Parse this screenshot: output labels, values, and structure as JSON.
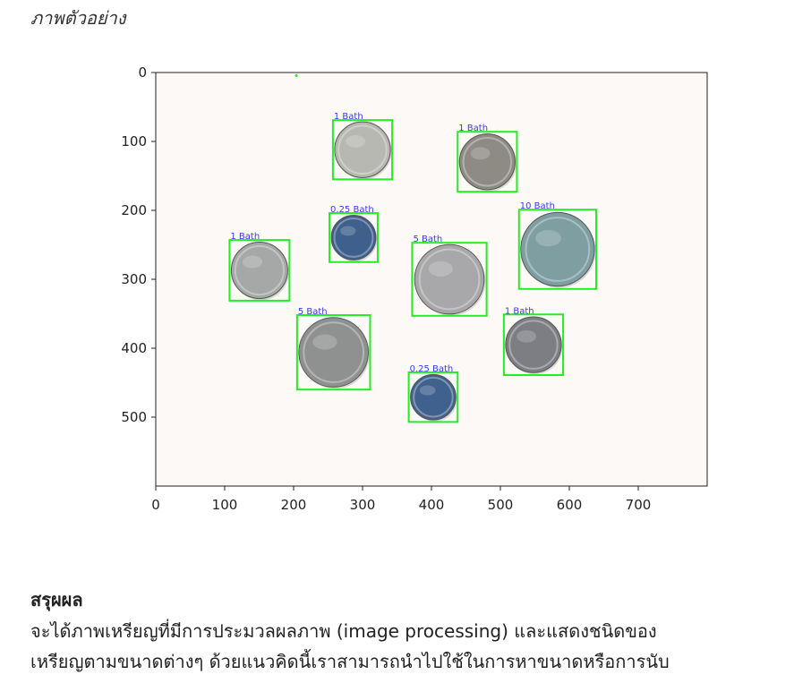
{
  "caption": "ภาพตัวอย่าง",
  "chart_data": {
    "type": "image",
    "xlim": [
      0,
      800
    ],
    "ylim": [
      600,
      0
    ],
    "x_ticks": [
      0,
      100,
      200,
      300,
      400,
      500,
      600,
      700
    ],
    "y_ticks": [
      0,
      100,
      200,
      300,
      400,
      500
    ],
    "coins": [
      {
        "label": "1 Bath",
        "x": 257,
        "y": 69,
        "w": 86,
        "h": 86,
        "color": "#b8b8b2"
      },
      {
        "label": "1 Bath",
        "x": 438,
        "y": 86,
        "w": 86,
        "h": 87,
        "color": "#8e8a84"
      },
      {
        "label": "0.25 Bath",
        "x": 252,
        "y": 204,
        "w": 70,
        "h": 71,
        "color": "#3f5f8c"
      },
      {
        "label": "10 Bath",
        "x": 527,
        "y": 199,
        "w": 112,
        "h": 115,
        "color": "#7e9ea2"
      },
      {
        "label": "1 Bath",
        "x": 107,
        "y": 243,
        "w": 87,
        "h": 88,
        "color": "#a6a8a8"
      },
      {
        "label": "5 Bath",
        "x": 372,
        "y": 247,
        "w": 108,
        "h": 106,
        "color": "#a8a8aa"
      },
      {
        "label": "5 Bath",
        "x": 205,
        "y": 352,
        "w": 106,
        "h": 108,
        "color": "#8f9090"
      },
      {
        "label": "1 Bath",
        "x": 505,
        "y": 351,
        "w": 86,
        "h": 88,
        "color": "#7c7e84"
      },
      {
        "label": "0.25 Bath",
        "x": 367,
        "y": 435,
        "w": 71,
        "h": 72,
        "color": "#40608e"
      }
    ],
    "marker": {
      "x": 204,
      "y": 2,
      "color": "#22ee22"
    }
  },
  "conclusion": {
    "heading": "สรุผผล",
    "line1": "จะได้ภาพเหรียญที่มีการประมวลผลภาพ (image processing) และแสดงชนิดของ",
    "line2": "เหรียญตามขนาดต่างๆ ด้วยแนวคิดนี้เราสามารถนำไปใช้ในการหาขนาดหรือการนับ"
  }
}
